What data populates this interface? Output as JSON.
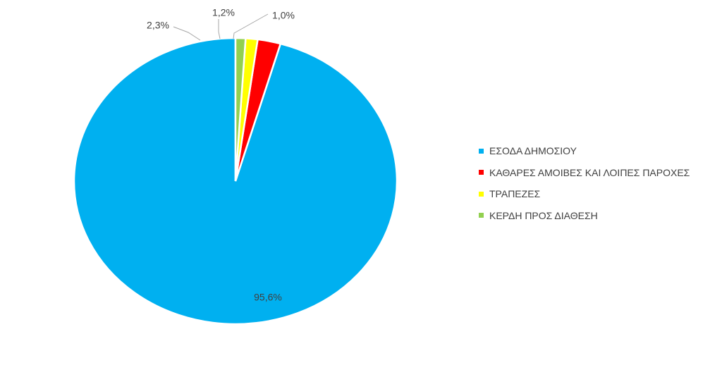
{
  "chart_data": {
    "type": "pie",
    "slices": [
      {
        "label": "ΕΣΟΔΑ ΔΗΜΟΣΙΟΥ",
        "value": 95.6,
        "value_label": "95,6%",
        "color": "#00B0F0"
      },
      {
        "label": "ΚΑΘΑΡΕΣ ΑΜΟΙΒΕΣ ΚΑΙ ΛΟΙΠΕΣ ΠΑΡΟΧΕΣ",
        "value": 2.3,
        "value_label": "2,3%",
        "color": "#FF0000"
      },
      {
        "label": "ΤΡΑΠΕΖΕΣ",
        "value": 1.2,
        "value_label": "1,2%",
        "color": "#FFFF00"
      },
      {
        "label": "ΚΕΡΔΗ ΠΡΟΣ ΔΙΑΘΕΣΗ",
        "value": 1.0,
        "value_label": "1,0%",
        "color": "#92D050"
      }
    ],
    "start_angle": "12 o'clock",
    "direction": "counterclockwise",
    "legend_position": "right",
    "title": ""
  }
}
